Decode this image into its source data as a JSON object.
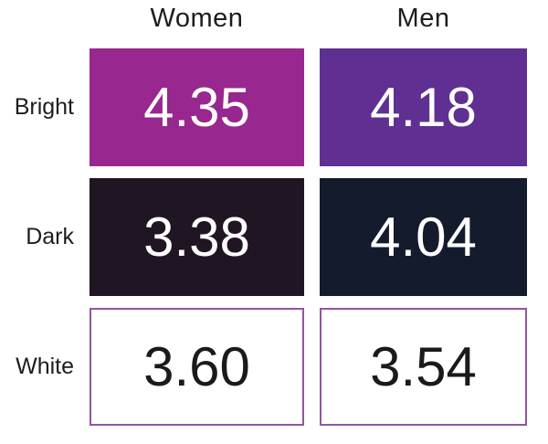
{
  "chart_data": {
    "type": "heatmap",
    "title": "",
    "columns": [
      "Women",
      "Men"
    ],
    "rows": [
      "Bright",
      "Dark",
      "White"
    ],
    "values": [
      [
        4.35,
        4.18
      ],
      [
        3.38,
        4.04
      ],
      [
        3.6,
        3.54
      ]
    ],
    "cell_colors": [
      [
        "#98278F",
        "#5F3092"
      ],
      [
        "#201523",
        "#141B2D"
      ],
      [
        "#FFFFFF",
        "#FFFFFF"
      ]
    ],
    "cell_text_colors": [
      [
        "#FFFFFF",
        "#FFFFFF"
      ],
      [
        "#FFFFFF",
        "#FFFFFF"
      ],
      [
        "#1A1A1A",
        "#1A1A1A"
      ]
    ],
    "white_cell_border_color": "#9553A0",
    "legend_position": "none",
    "grid": false
  },
  "table": {
    "columns": [
      {
        "label": "Women"
      },
      {
        "label": "Men"
      }
    ],
    "rows": [
      {
        "label": "Bright",
        "cells": [
          {
            "display": "4.35",
            "bg": "#98278F",
            "fg": "#FFFFFF",
            "border": "#98278F"
          },
          {
            "display": "4.18",
            "bg": "#5F3092",
            "fg": "#FFFFFF",
            "border": "#5F3092"
          }
        ]
      },
      {
        "label": "Dark",
        "cells": [
          {
            "display": "3.38",
            "bg": "#201523",
            "fg": "#FFFFFF",
            "border": "#201523"
          },
          {
            "display": "4.04",
            "bg": "#141B2D",
            "fg": "#FFFFFF",
            "border": "#141B2D"
          }
        ]
      },
      {
        "label": "White",
        "cells": [
          {
            "display": "3.60",
            "bg": "#FFFFFF",
            "fg": "#1A1A1A",
            "border": "#9553A0"
          },
          {
            "display": "3.54",
            "bg": "#FFFFFF",
            "fg": "#1A1A1A",
            "border": "#9553A0"
          }
        ]
      }
    ]
  }
}
